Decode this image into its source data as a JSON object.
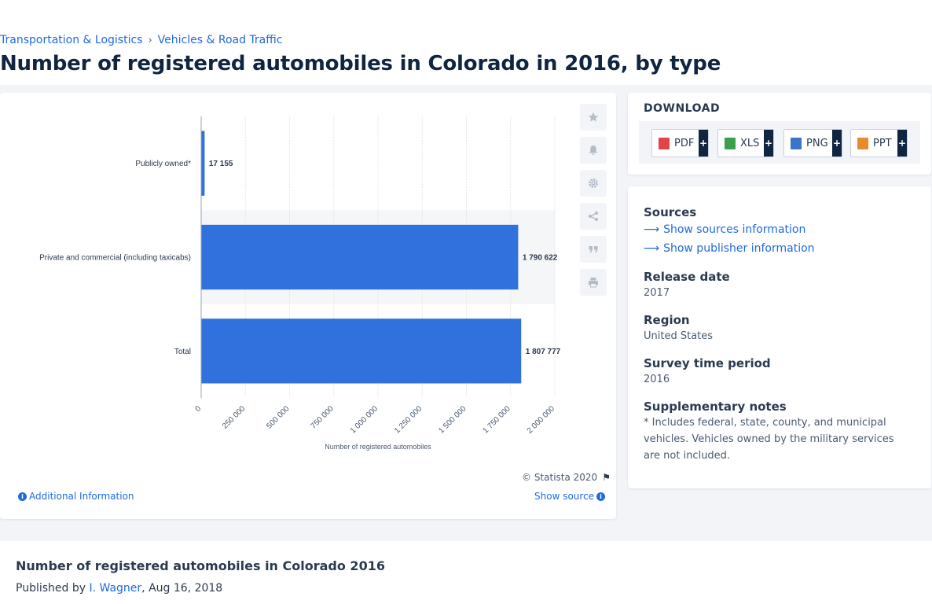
{
  "breadcrumb": {
    "items": [
      "Transportation & Logistics",
      "Vehicles & Road Traffic"
    ],
    "separator": "›"
  },
  "page_title": "Number of registered automobiles in Colorado in 2016, by type",
  "chart_data": {
    "type": "bar",
    "orientation": "horizontal",
    "categories": [
      "Publicly owned*",
      "Private and commercial (including taxicabs)",
      "Total"
    ],
    "values": [
      17155,
      1790622,
      1807777
    ],
    "value_labels": [
      "17 155",
      "1 790 622",
      "1 807 777"
    ],
    "xlabel": "Number of registered automobiles",
    "xlim": [
      0,
      2000000
    ],
    "x_ticks": [
      0,
      250000,
      500000,
      750000,
      1000000,
      1250000,
      1500000,
      1750000,
      2000000
    ],
    "x_tick_labels": [
      "0",
      "250 000",
      "500 000",
      "750 000",
      "1 000 000",
      "1 250 000",
      "1 500 000",
      "1 750 000",
      "2 000 000"
    ],
    "grid": true,
    "bar_color": "#3071de"
  },
  "chart_footer": {
    "copyright": "© Statista 2020",
    "additional_info": "Additional Information",
    "show_source": "Show source"
  },
  "toolbar_icons": [
    "star-icon",
    "bell-icon",
    "gear-icon",
    "share-icon",
    "quote-icon",
    "print-icon"
  ],
  "download": {
    "heading": "DOWNLOAD",
    "buttons": [
      {
        "label": "PDF",
        "color": "#e04545"
      },
      {
        "label": "XLS",
        "color": "#3aa04a"
      },
      {
        "label": "PNG",
        "color": "#3b73c8"
      },
      {
        "label": "PPT",
        "color": "#e98a2c"
      }
    ],
    "plus": "+"
  },
  "info": {
    "sources_label": "Sources",
    "sources_link": "Show sources information",
    "publisher_link": "Show publisher information",
    "release_label": "Release date",
    "release_value": "2017",
    "region_label": "Region",
    "region_value": "United States",
    "survey_label": "Survey time period",
    "survey_value": "2016",
    "notes_label": "Supplementary notes",
    "notes_value": "* Includes federal, state, county, and municipal vehicles. Vehicles owned by the military services are not included."
  },
  "bottom": {
    "title": "Number of registered automobiles in Colorado 2016",
    "published_by": "Published by",
    "author": "I. Wagner",
    "date": ", Aug 16, 2018"
  },
  "colors": {
    "accent": "#1f6ae0",
    "navy": "#0f2542",
    "bar": "#3071de"
  }
}
